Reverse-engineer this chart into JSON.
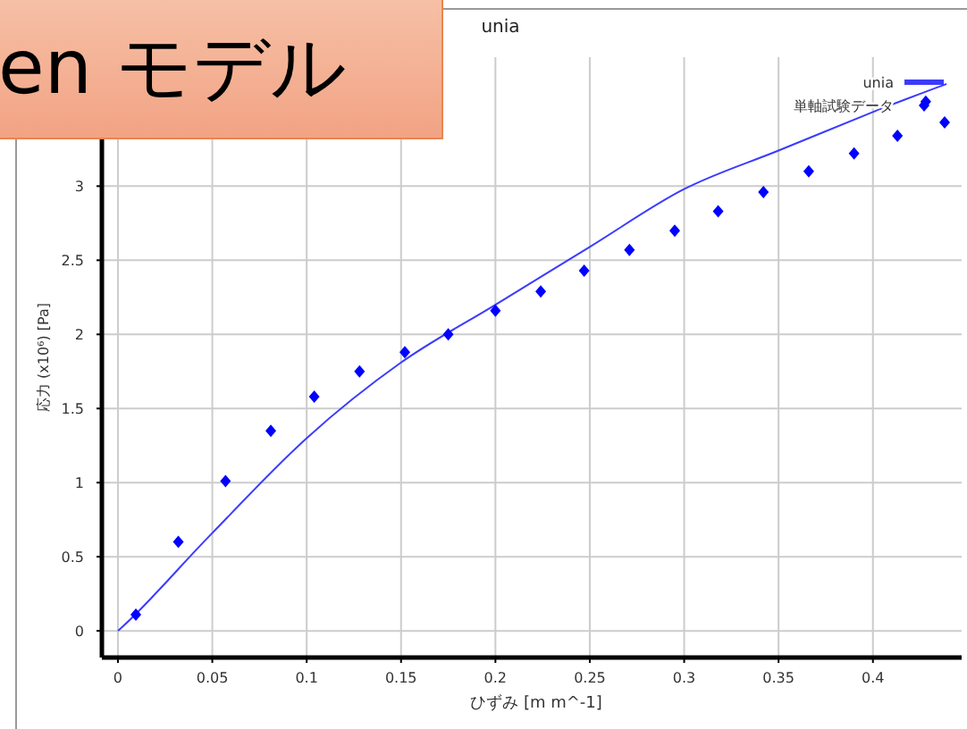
{
  "chart_data": {
    "type": "scatter",
    "title": "unia",
    "xlabel": "ひずみ [m m^-1]",
    "ylabel": "応力 (x10⁶) [Pa]",
    "annotations": [
      "en モデル"
    ],
    "xlim": [
      -0.0085,
      0.447
    ],
    "ylim": [
      -0.18,
      3.87
    ],
    "xticks": [
      0,
      0.05,
      0.1,
      0.15,
      0.2,
      0.25,
      0.3,
      0.35,
      0.4
    ],
    "yticks": [
      0,
      0.5,
      1,
      1.5,
      2,
      2.5,
      3
    ],
    "grid": true,
    "legend": "top right",
    "series": [
      {
        "name": "unia",
        "type": "line",
        "color": "#3b3bff",
        "x": [
          0,
          0.01,
          0.025,
          0.05,
          0.1,
          0.15,
          0.2,
          0.25,
          0.3,
          0.35,
          0.4,
          0.439
        ],
        "values": [
          0,
          0.12,
          0.32,
          0.66,
          1.3,
          1.81,
          2.2,
          2.59,
          2.98,
          3.24,
          3.5,
          3.69
        ]
      },
      {
        "name": "単軸試験データ",
        "marker": "diamond",
        "color": "#0000ff",
        "x": [
          0.0095,
          0.032,
          0.057,
          0.081,
          0.104,
          0.128,
          0.152,
          0.175,
          0.2,
          0.224,
          0.247,
          0.271,
          0.295,
          0.318,
          0.342,
          0.366,
          0.39,
          0.413,
          0.428,
          0.438
        ],
        "values": [
          0.11,
          0.6,
          1.01,
          1.35,
          1.58,
          1.75,
          1.88,
          2.0,
          2.16,
          2.29,
          2.43,
          2.57,
          2.7,
          2.83,
          2.96,
          3.1,
          3.22,
          3.34,
          3.57,
          3.43
        ]
      }
    ]
  }
}
